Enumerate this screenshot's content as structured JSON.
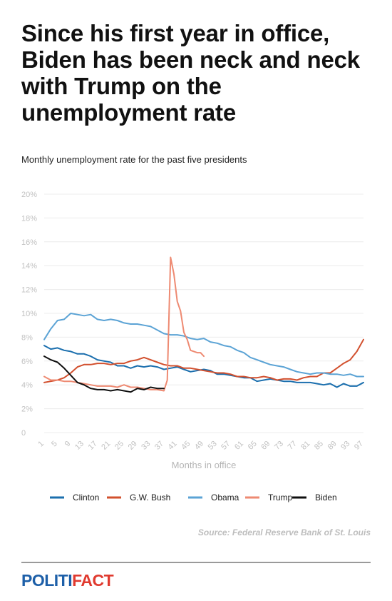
{
  "headline": "Since his first year in office, Biden has been neck and neck with Trump on the unemployment rate",
  "subtitle": "Monthly unemployment rate for the past five presidents",
  "source": "Source: Federal Reserve Bank of St. Louis",
  "logo": {
    "part1": "POLITI",
    "part2": "FACT"
  },
  "chart_data": {
    "type": "line",
    "xlabel": "Months in office",
    "ylabel": "",
    "xlim": [
      1,
      97
    ],
    "ylim": [
      0,
      20
    ],
    "x_ticks": [
      1,
      5,
      9,
      13,
      17,
      21,
      25,
      29,
      33,
      37,
      41,
      45,
      49,
      53,
      57,
      61,
      65,
      69,
      73,
      77,
      81,
      85,
      89,
      93,
      97
    ],
    "y_ticks": [
      0,
      2,
      4,
      6,
      8,
      10,
      12,
      14,
      16,
      18,
      20
    ],
    "y_tick_labels": [
      "0",
      "2%",
      "4%",
      "6%",
      "8%",
      "10%",
      "12%",
      "14%",
      "16%",
      "18%",
      "20%"
    ],
    "grid": true,
    "legend": "bottom",
    "series": [
      {
        "name": "Clinton",
        "color": "#1b6fae",
        "points": [
          [
            1,
            7.3
          ],
          [
            3,
            7.0
          ],
          [
            5,
            7.1
          ],
          [
            7,
            6.9
          ],
          [
            9,
            6.8
          ],
          [
            11,
            6.6
          ],
          [
            13,
            6.6
          ],
          [
            15,
            6.4
          ],
          [
            17,
            6.1
          ],
          [
            19,
            6.0
          ],
          [
            21,
            5.9
          ],
          [
            23,
            5.6
          ],
          [
            25,
            5.6
          ],
          [
            27,
            5.4
          ],
          [
            29,
            5.6
          ],
          [
            31,
            5.5
          ],
          [
            33,
            5.6
          ],
          [
            35,
            5.5
          ],
          [
            37,
            5.3
          ],
          [
            39,
            5.4
          ],
          [
            41,
            5.5
          ],
          [
            43,
            5.3
          ],
          [
            45,
            5.1
          ],
          [
            47,
            5.2
          ],
          [
            49,
            5.3
          ],
          [
            51,
            5.2
          ],
          [
            53,
            4.9
          ],
          [
            55,
            4.9
          ],
          [
            57,
            4.8
          ],
          [
            59,
            4.7
          ],
          [
            61,
            4.6
          ],
          [
            63,
            4.6
          ],
          [
            65,
            4.3
          ],
          [
            67,
            4.4
          ],
          [
            69,
            4.5
          ],
          [
            71,
            4.4
          ],
          [
            73,
            4.3
          ],
          [
            75,
            4.3
          ],
          [
            77,
            4.2
          ],
          [
            79,
            4.2
          ],
          [
            81,
            4.2
          ],
          [
            83,
            4.1
          ],
          [
            85,
            4.0
          ],
          [
            87,
            4.1
          ],
          [
            89,
            3.8
          ],
          [
            91,
            4.1
          ],
          [
            93,
            3.9
          ],
          [
            95,
            3.9
          ],
          [
            97,
            4.2
          ]
        ]
      },
      {
        "name": "G.W. Bush",
        "color": "#d2502e",
        "points": [
          [
            1,
            4.2
          ],
          [
            3,
            4.3
          ],
          [
            5,
            4.4
          ],
          [
            7,
            4.6
          ],
          [
            9,
            5.0
          ],
          [
            11,
            5.5
          ],
          [
            13,
            5.7
          ],
          [
            15,
            5.7
          ],
          [
            17,
            5.8
          ],
          [
            19,
            5.8
          ],
          [
            21,
            5.7
          ],
          [
            23,
            5.8
          ],
          [
            25,
            5.8
          ],
          [
            27,
            6.0
          ],
          [
            29,
            6.1
          ],
          [
            31,
            6.3
          ],
          [
            33,
            6.1
          ],
          [
            35,
            5.9
          ],
          [
            37,
            5.7
          ],
          [
            39,
            5.6
          ],
          [
            41,
            5.6
          ],
          [
            43,
            5.4
          ],
          [
            45,
            5.4
          ],
          [
            47,
            5.3
          ],
          [
            49,
            5.2
          ],
          [
            51,
            5.1
          ],
          [
            53,
            5.0
          ],
          [
            55,
            5.0
          ],
          [
            57,
            4.9
          ],
          [
            59,
            4.7
          ],
          [
            61,
            4.7
          ],
          [
            63,
            4.6
          ],
          [
            65,
            4.6
          ],
          [
            67,
            4.7
          ],
          [
            69,
            4.6
          ],
          [
            71,
            4.4
          ],
          [
            73,
            4.5
          ],
          [
            75,
            4.5
          ],
          [
            77,
            4.4
          ],
          [
            79,
            4.6
          ],
          [
            81,
            4.7
          ],
          [
            83,
            4.7
          ],
          [
            85,
            5.0
          ],
          [
            87,
            5.0
          ],
          [
            89,
            5.4
          ],
          [
            91,
            5.8
          ],
          [
            93,
            6.1
          ],
          [
            95,
            6.8
          ],
          [
            97,
            7.8
          ]
        ]
      },
      {
        "name": "Obama",
        "color": "#5ba3d5",
        "points": [
          [
            1,
            7.8
          ],
          [
            3,
            8.7
          ],
          [
            5,
            9.4
          ],
          [
            7,
            9.5
          ],
          [
            9,
            10.0
          ],
          [
            11,
            9.9
          ],
          [
            13,
            9.8
          ],
          [
            15,
            9.9
          ],
          [
            17,
            9.5
          ],
          [
            19,
            9.4
          ],
          [
            21,
            9.5
          ],
          [
            23,
            9.4
          ],
          [
            25,
            9.2
          ],
          [
            27,
            9.1
          ],
          [
            29,
            9.1
          ],
          [
            31,
            9.0
          ],
          [
            33,
            8.9
          ],
          [
            35,
            8.6
          ],
          [
            37,
            8.3
          ],
          [
            39,
            8.2
          ],
          [
            41,
            8.2
          ],
          [
            43,
            8.1
          ],
          [
            45,
            7.9
          ],
          [
            47,
            7.8
          ],
          [
            49,
            7.9
          ],
          [
            51,
            7.6
          ],
          [
            53,
            7.5
          ],
          [
            55,
            7.3
          ],
          [
            57,
            7.2
          ],
          [
            59,
            6.9
          ],
          [
            61,
            6.7
          ],
          [
            63,
            6.3
          ],
          [
            65,
            6.1
          ],
          [
            67,
            5.9
          ],
          [
            69,
            5.7
          ],
          [
            71,
            5.6
          ],
          [
            73,
            5.5
          ],
          [
            75,
            5.3
          ],
          [
            77,
            5.1
          ],
          [
            79,
            5.0
          ],
          [
            81,
            4.9
          ],
          [
            83,
            5.0
          ],
          [
            85,
            5.0
          ],
          [
            87,
            4.9
          ],
          [
            89,
            4.9
          ],
          [
            91,
            4.8
          ],
          [
            93,
            4.9
          ],
          [
            95,
            4.7
          ],
          [
            97,
            4.7
          ]
        ]
      },
      {
        "name": "Trump",
        "color": "#ee8a72",
        "points": [
          [
            1,
            4.7
          ],
          [
            3,
            4.4
          ],
          [
            5,
            4.4
          ],
          [
            7,
            4.3
          ],
          [
            9,
            4.3
          ],
          [
            11,
            4.2
          ],
          [
            13,
            4.1
          ],
          [
            15,
            4.0
          ],
          [
            17,
            3.9
          ],
          [
            19,
            3.9
          ],
          [
            21,
            3.9
          ],
          [
            23,
            3.8
          ],
          [
            25,
            4.0
          ],
          [
            27,
            3.8
          ],
          [
            29,
            3.8
          ],
          [
            31,
            3.7
          ],
          [
            33,
            3.6
          ],
          [
            35,
            3.6
          ],
          [
            37,
            3.5
          ],
          [
            38,
            4.4
          ],
          [
            39,
            14.7
          ],
          [
            40,
            13.3
          ],
          [
            41,
            11.0
          ],
          [
            42,
            10.2
          ],
          [
            43,
            8.4
          ],
          [
            44,
            7.8
          ],
          [
            45,
            6.9
          ],
          [
            47,
            6.7
          ],
          [
            48,
            6.7
          ],
          [
            49,
            6.4
          ]
        ]
      },
      {
        "name": "Biden",
        "color": "#0f0f0f",
        "points": [
          [
            1,
            6.4
          ],
          [
            3,
            6.1
          ],
          [
            5,
            5.9
          ],
          [
            7,
            5.4
          ],
          [
            9,
            4.8
          ],
          [
            11,
            4.2
          ],
          [
            13,
            4.0
          ],
          [
            15,
            3.7
          ],
          [
            17,
            3.6
          ],
          [
            19,
            3.6
          ],
          [
            21,
            3.5
          ],
          [
            23,
            3.6
          ],
          [
            25,
            3.5
          ],
          [
            27,
            3.4
          ],
          [
            29,
            3.7
          ],
          [
            31,
            3.6
          ],
          [
            33,
            3.8
          ],
          [
            35,
            3.7
          ],
          [
            37,
            3.7
          ]
        ]
      }
    ]
  }
}
